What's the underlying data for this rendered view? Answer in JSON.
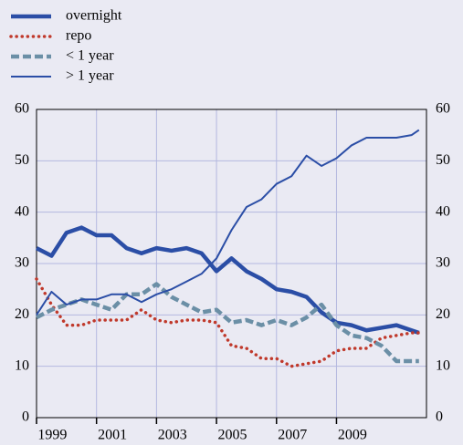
{
  "chart_data": {
    "type": "line",
    "x": [
      1999,
      1999.5,
      2000,
      2000.5,
      2001,
      2001.5,
      2002,
      2002.5,
      2003,
      2003.5,
      2004,
      2004.5,
      2005,
      2005.5,
      2006,
      2006.5,
      2007,
      2007.5,
      2008,
      2008.5,
      2009,
      2009.5,
      2010,
      2010.5,
      2011,
      2011.5,
      2011.75
    ],
    "series": [
      {
        "name": "overnight",
        "color": "#2b4ea6",
        "style": "thick",
        "values": [
          33,
          31.5,
          36,
          37,
          35.5,
          35.5,
          33,
          32,
          33,
          32.5,
          33,
          32,
          28.5,
          31,
          28.5,
          27,
          25,
          24.5,
          23.5,
          20.5,
          18.5,
          18,
          17,
          17.5,
          18,
          17,
          16.5
        ]
      },
      {
        "name": "repo",
        "color": "#c0392b",
        "style": "dotted",
        "values": [
          27,
          22,
          18,
          18,
          19,
          19,
          19,
          21,
          19,
          18.5,
          19,
          19,
          18.5,
          14,
          13.5,
          11.5,
          11.5,
          10,
          10.5,
          11,
          13,
          13.5,
          13.5,
          15.5,
          16,
          16.5,
          16.5
        ]
      },
      {
        "name": "< 1 year",
        "color": "#6b8fa6",
        "style": "dashed",
        "values": [
          19.5,
          21,
          22,
          23,
          22,
          21,
          24,
          24,
          26,
          23.5,
          22,
          20.5,
          21,
          18.5,
          19,
          18,
          19,
          18,
          19.5,
          22,
          18,
          16,
          15.5,
          14,
          11,
          11,
          11
        ]
      },
      {
        "name": "> 1 year",
        "color": "#2b4ea6",
        "style": "thin",
        "values": [
          20,
          24.5,
          22,
          23,
          23,
          24,
          24,
          22.5,
          24,
          25,
          26.5,
          28,
          31,
          36.5,
          41,
          42.5,
          45.5,
          47,
          51,
          49,
          50.5,
          53,
          54.5,
          54.5,
          54.5,
          55,
          56
        ]
      }
    ],
    "xlim": [
      1999,
      2012
    ],
    "xticks": [
      1999,
      2001,
      2003,
      2005,
      2007,
      2009
    ],
    "ylim": [
      0,
      60
    ],
    "yticks": [
      0,
      10,
      20,
      30,
      40,
      50,
      60
    ],
    "grid": true
  }
}
